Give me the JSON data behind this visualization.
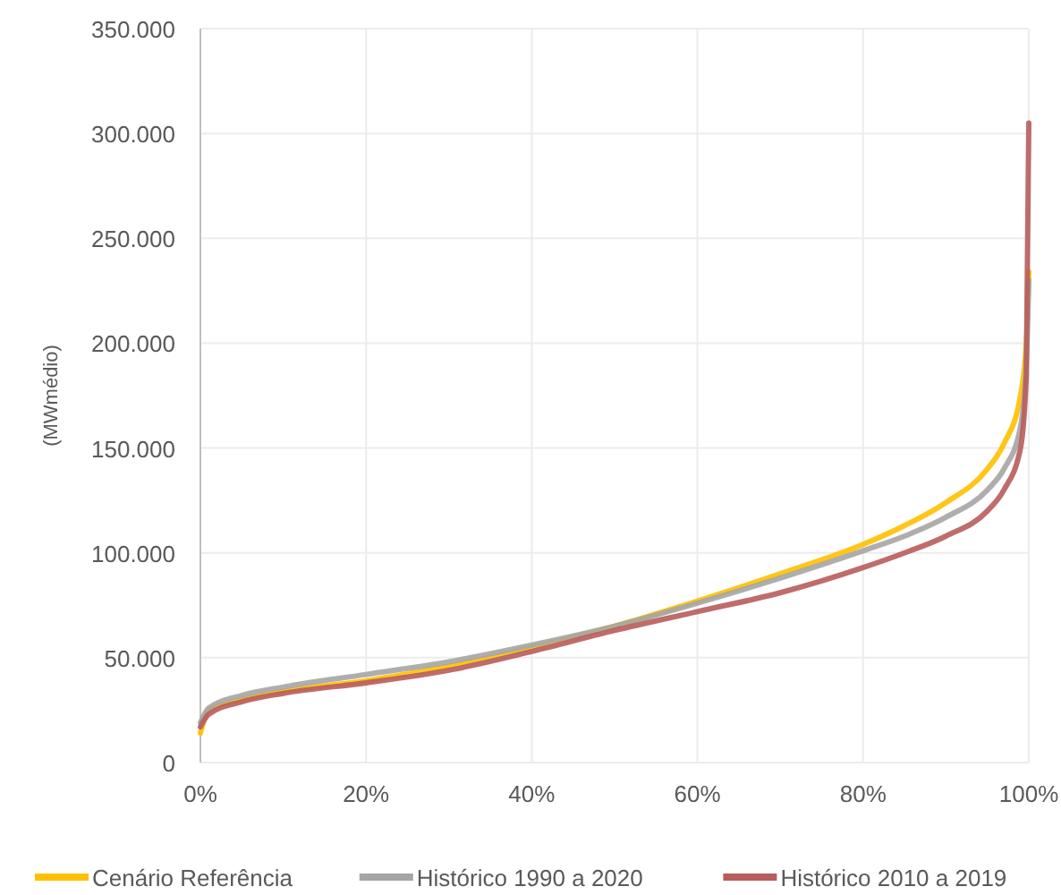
{
  "chart_data": {
    "type": "line",
    "ylabel": "(MWmédio)",
    "x": [
      0,
      1,
      5,
      10,
      20,
      30,
      40,
      50,
      60,
      70,
      80,
      85,
      90,
      95,
      97,
      99,
      99.7,
      100
    ],
    "series": [
      {
        "name": "Cenário Referência",
        "color": "#ffc000",
        "values": [
          14000,
          25000,
          30000,
          34000,
          39000,
          46000,
          55000,
          65000,
          77000,
          90000,
          104000,
          113000,
          124000,
          140000,
          152000,
          175000,
          200000,
          234000
        ]
      },
      {
        "name": "Histórico 1990 a 2020",
        "color": "#a5a5a5",
        "values": [
          19000,
          26000,
          32000,
          36000,
          42000,
          48000,
          56000,
          65000,
          76000,
          88000,
          101000,
          108000,
          117000,
          130000,
          140000,
          160000,
          190000,
          230000
        ]
      },
      {
        "name": "Histórico 2010 a 2019",
        "color": "#b85c5c",
        "values": [
          17000,
          23000,
          29000,
          33000,
          38000,
          44000,
          53000,
          63000,
          72000,
          81000,
          93000,
          100000,
          108000,
          120000,
          130000,
          150000,
          185000,
          305000
        ]
      }
    ],
    "xlim": [
      0,
      100
    ],
    "xticks": [
      {
        "value": 0,
        "label": "0%"
      },
      {
        "value": 20,
        "label": "20%"
      },
      {
        "value": 40,
        "label": "40%"
      },
      {
        "value": 60,
        "label": "60%"
      },
      {
        "value": 80,
        "label": "80%"
      },
      {
        "value": 100,
        "label": "100%"
      }
    ],
    "ylim": [
      0,
      350000
    ],
    "yticks": [
      0,
      {
        "value": 50000,
        "label": "50.000"
      },
      {
        "value": 100000,
        "label": "100.000"
      },
      {
        "value": 150000,
        "label": "150.000"
      },
      {
        "value": 200000,
        "label": "200.000"
      },
      {
        "value": 250000,
        "label": "250.000"
      },
      {
        "value": 300000,
        "label": "300.000"
      },
      {
        "value": 350000,
        "label": "350.000"
      }
    ],
    "grid": true,
    "legend": "bottom",
    "marker": "none",
    "line_style": "solid"
  }
}
